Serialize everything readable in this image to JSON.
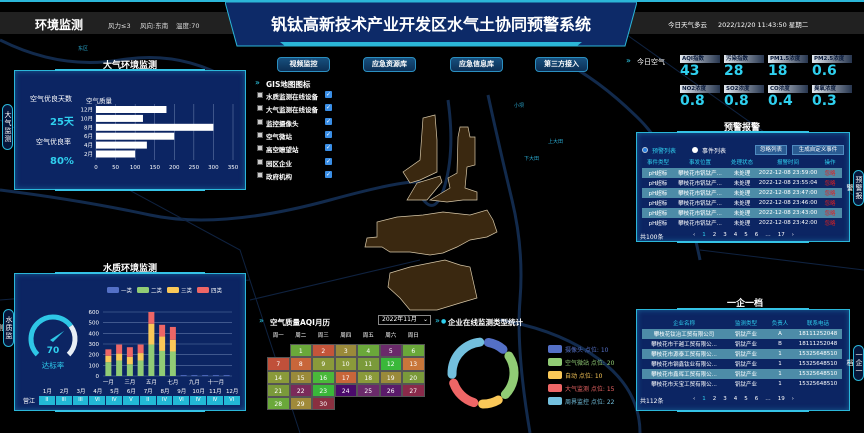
{
  "header": {
    "section_title": "环境监测",
    "wind_force": "风力≤3",
    "wind_dir": "风向:东南",
    "temperature": "温度:70",
    "title": "钒钛高新技术产业开发区水气土协同预警系统",
    "weather": "今日天气多云",
    "datetime": "2022/12/20 11:43:50 星期二"
  },
  "nav": [
    "视频监控",
    "应急资源库",
    "应急信息库",
    "第三方接入"
  ],
  "gis": {
    "title": "GIS地图图标",
    "items": [
      {
        "label": "水质监测在线设备",
        "checked": true
      },
      {
        "label": "大气监测在线设备",
        "checked": true
      },
      {
        "label": "监控摄像头",
        "checked": true
      },
      {
        "label": "空气微站",
        "checked": true
      },
      {
        "label": "高空瞭望站",
        "checked": true
      },
      {
        "label": "园区企业",
        "checked": true
      },
      {
        "label": "政府机构",
        "checked": true
      }
    ]
  },
  "map_labels": [
    "东区",
    "上大田",
    "下大田",
    "小坝"
  ],
  "air": {
    "title": "大气环境监测",
    "tab": "大气监测",
    "good_days_label": "空气优良天数",
    "good_days": "25天",
    "good_rate_label": "空气优良率",
    "good_rate": "80%"
  },
  "chart_data": [
    {
      "type": "bar",
      "orientation": "horizontal",
      "title": "空气质量",
      "categories": [
        "12月",
        "10月",
        "8月",
        "6月",
        "4月",
        "2月"
      ],
      "values": [
        180,
        120,
        300,
        200,
        130,
        100
      ],
      "xlim": [
        0,
        350
      ],
      "xticks": [
        "0",
        "50",
        "100",
        "150",
        "200",
        "250",
        "300",
        "350"
      ],
      "grid": true
    },
    {
      "type": "bar",
      "stacked": true,
      "title": "",
      "categories": [
        "一月",
        "二月",
        "三月",
        "四月",
        "五月",
        "六月",
        "七月",
        "八月",
        "九月",
        "十月",
        "十一月",
        "十二月"
      ],
      "xtick_labels": [
        "一月",
        "三月",
        "五月",
        "七月",
        "九月",
        "十一月"
      ],
      "ylim": [
        0,
        600
      ],
      "yticks": [
        "0",
        "100",
        "200",
        "300",
        "400",
        "500",
        "600"
      ],
      "legend": "top",
      "series": [
        {
          "name": "一类",
          "color": "#5470c6",
          "values": [
            0,
            0,
            0,
            0,
            0,
            0,
            0,
            8,
            8,
            8,
            8,
            8
          ]
        },
        {
          "name": "二类",
          "color": "#91cc75",
          "values": [
            130,
            145,
            110,
            145,
            295,
            235,
            230,
            0,
            0,
            0,
            0,
            0
          ]
        },
        {
          "name": "三类",
          "color": "#fac858",
          "values": [
            60,
            65,
            70,
            70,
            195,
            135,
            110,
            0,
            0,
            0,
            0,
            0
          ]
        },
        {
          "name": "四类",
          "color": "#ee6666",
          "values": [
            60,
            85,
            90,
            80,
            110,
            110,
            120,
            0,
            0,
            0,
            0,
            0
          ]
        }
      ]
    },
    {
      "type": "pie",
      "donut": true,
      "title": "企业在线监测类型统计",
      "legend": "right",
      "slices": [
        {
          "label": "摄像头 点位: 10",
          "value": 10,
          "color": "#5470c6"
        },
        {
          "label": "空气微站 点位: 20",
          "value": 20,
          "color": "#91cc75"
        },
        {
          "label": "自动 点位: 10",
          "value": 10,
          "color": "#fac858"
        },
        {
          "label": "大气监测 点位: 15",
          "value": 15,
          "color": "#ee6666"
        },
        {
          "label": "周界监控 点位: 22",
          "value": 22,
          "color": "#73c0de"
        }
      ]
    }
  ],
  "water": {
    "title": "水质环境监测",
    "tab": "水质监测",
    "gauge_value": "70",
    "gauge_fraction": 0.7,
    "gauge_label": "达标率",
    "river": "营江",
    "months": [
      "1月",
      "2月",
      "3月",
      "4月",
      "5月",
      "6月",
      "7月",
      "8月",
      "9月",
      "10月",
      "11月",
      "12月"
    ],
    "grades": [
      "II",
      "III",
      "III",
      "VI",
      "IV",
      "V",
      "II",
      "IV",
      "VI",
      "IV",
      "IV",
      "VI"
    ]
  },
  "calendar": {
    "title": "空气质量AQI月历",
    "month": "2022年11月",
    "weekdays": [
      "周一",
      "周二",
      "周三",
      "周四",
      "周五",
      "周六",
      "周日"
    ],
    "first_weekday": 1,
    "days": [
      {
        "d": "1",
        "c": "#6aa83a"
      },
      {
        "d": "2",
        "c": "#c4553a"
      },
      {
        "d": "3",
        "c": "#9a8a3a"
      },
      {
        "d": "4",
        "c": "#6aa83a"
      },
      {
        "d": "5",
        "c": "#6a2a6a"
      },
      {
        "d": "6",
        "c": "#6aa83a"
      },
      {
        "d": "7",
        "c": "#c0503a"
      },
      {
        "d": "8",
        "c": "#c8663a"
      },
      {
        "d": "9",
        "c": "#8a9a3a"
      },
      {
        "d": "10",
        "c": "#8a9a3a"
      },
      {
        "d": "11",
        "c": "#7a9a3a"
      },
      {
        "d": "12",
        "c": "#3ab83a"
      },
      {
        "d": "13",
        "c": "#c8763a"
      },
      {
        "d": "14",
        "c": "#8a9a3a"
      },
      {
        "d": "15",
        "c": "#9a8a3a"
      },
      {
        "d": "16",
        "c": "#4ab83a"
      },
      {
        "d": "17",
        "c": "#c8663a"
      },
      {
        "d": "18",
        "c": "#8a9a3a"
      },
      {
        "d": "19",
        "c": "#9a8a3a"
      },
      {
        "d": "20",
        "c": "#7a9a3a"
      },
      {
        "d": "21",
        "c": "#7a9a3a"
      },
      {
        "d": "22",
        "c": "#7a2a5a"
      },
      {
        "d": "23",
        "c": "#3ab83a"
      },
      {
        "d": "24",
        "c": "#4a0a6a"
      },
      {
        "d": "25",
        "c": "#6a2a6a"
      },
      {
        "d": "26",
        "c": "#5a1a6a"
      },
      {
        "d": "27",
        "c": "#8a2a4a"
      },
      {
        "d": "28",
        "c": "#6aa83a"
      },
      {
        "d": "29",
        "c": "#a08a3a"
      },
      {
        "d": "30",
        "c": "#8a3040"
      }
    ]
  },
  "air_today": {
    "title": "今日空气",
    "items": [
      {
        "label": "AQI指数",
        "value": "43"
      },
      {
        "label": "污染指数",
        "value": "28"
      },
      {
        "label": "PM1.5浓度",
        "value": "18"
      },
      {
        "label": "PM2.5浓度",
        "value": "0.6"
      },
      {
        "label": "NO2浓度",
        "value": "0.8"
      },
      {
        "label": "SO2浓度",
        "value": "0.8"
      },
      {
        "label": "CO浓度",
        "value": "0.4"
      },
      {
        "label": "臭氧浓度",
        "value": "0.3"
      }
    ]
  },
  "alerts": {
    "title": "预警报警",
    "tab": "预警报警",
    "radio_alerts": "预警列表",
    "radio_events": "事件列表",
    "ignore_list": "忽略列表",
    "create_event": "生成自定义事件",
    "columns": [
      "事件类型",
      "事发位置",
      "处理状态",
      "报警时间",
      "操作"
    ],
    "rows": [
      [
        "pH超标",
        "攀枝花市钒钛产...",
        "未处理",
        "2022-12-08 23:59:00",
        "忽略"
      ],
      [
        "pH超标",
        "攀枝花市钒钛产...",
        "未处理",
        "2022-12-08 23:55:04",
        "忽略"
      ],
      [
        "pH超标",
        "攀枝花市钒钛产...",
        "未处理",
        "2022-12-08 23:47:00",
        "忽略"
      ],
      [
        "pH超标",
        "攀枝花市钒钛产...",
        "未处理",
        "2022-12-08 23:46:00",
        "忽略"
      ],
      [
        "pH超标",
        "攀枝花市钒钛产...",
        "未处理",
        "2022-12-08 23:43:00",
        "忽略"
      ],
      [
        "pH超标",
        "攀枝花市钒钛产...",
        "未处理",
        "2022-12-08 23:42:00",
        "忽略"
      ]
    ],
    "total": "共100条",
    "pages": [
      "‹",
      "1",
      "2",
      "3",
      "4",
      "5",
      "6",
      "…",
      "17",
      "›"
    ]
  },
  "enterprise": {
    "title": "一企一档",
    "tab": "一企一档",
    "columns": [
      "企业名称",
      "监测类型",
      "负责人",
      "联系电话"
    ],
    "rows": [
      [
        "攀枝花钛冶工贸有限公司",
        "钒钛产业",
        "A",
        "18111252048"
      ],
      [
        "攀枝花市干越工贸有限公...",
        "钒钛产业",
        "B",
        "18111252048"
      ],
      [
        "攀枝花市源泰工贸有限公...",
        "钒钛产业",
        "1",
        "15325648510"
      ],
      [
        "攀枝花市钢鑫钛业有限公...",
        "钒钛产业",
        "1",
        "15325648510"
      ],
      [
        "攀枝花市鑫晖工贸有限公...",
        "钒钛产业",
        "1",
        "15325648510"
      ],
      [
        "攀枝花市天宝工贸有限公...",
        "钒钛产业",
        "1",
        "15325648510"
      ]
    ],
    "total": "共112条",
    "pages": [
      "‹",
      "1",
      "2",
      "3",
      "4",
      "5",
      "6",
      "…",
      "19",
      "›"
    ]
  }
}
